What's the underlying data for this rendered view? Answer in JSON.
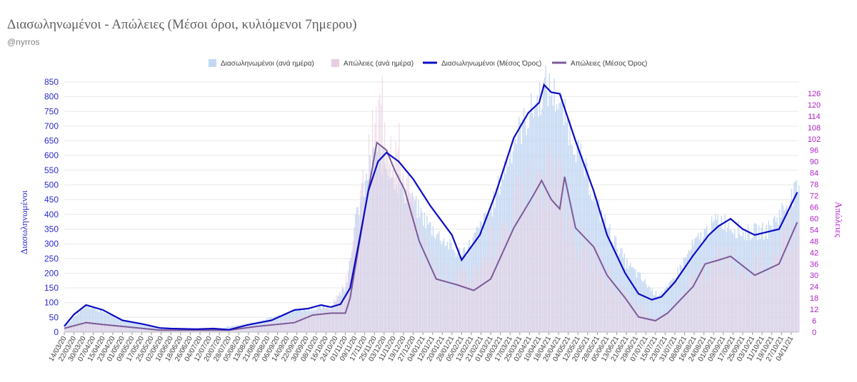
{
  "header": {
    "title": "Διασωληνωμένοι - Απώλειες (Μέσοι όροι, κυλιόμενοι 7ημερου)",
    "subtitle": "@nyrros"
  },
  "colors": {
    "intubated_daily": "#c5d8f3",
    "deaths_daily": "#e6cfe0",
    "intubated_avg": "#0c0cc4",
    "deaths_avg": "#7c5a98",
    "left_axis": "#2a2ad0",
    "right_axis": "#b020c8",
    "grid": "#e8e8e8"
  },
  "chart_data": {
    "type": "bar+line",
    "legend_position": "top",
    "grid": true,
    "ylabel": "Διασωληνωμένοι",
    "y2label": "Απώλειες",
    "ylim": [
      0,
      850
    ],
    "y2lim": [
      0,
      132
    ],
    "yticks": [
      0,
      50,
      100,
      150,
      200,
      250,
      300,
      350,
      400,
      450,
      500,
      550,
      600,
      650,
      700,
      750,
      800,
      850
    ],
    "y2ticks": [
      0,
      6,
      12,
      18,
      24,
      30,
      36,
      42,
      48,
      54,
      60,
      66,
      72,
      78,
      84,
      90,
      96,
      102,
      108,
      114,
      120,
      126
    ],
    "x_start": "2020-03-14",
    "x_end": "2021-11-10",
    "x_ticks": [
      "14/03/20",
      "22/03/20",
      "30/03/20",
      "07/04/20",
      "15/04/20",
      "23/04/20",
      "01/05/20",
      "09/05/20",
      "17/05/20",
      "25/05/20",
      "02/06/20",
      "10/06/20",
      "18/06/20",
      "26/06/20",
      "04/07/20",
      "12/07/20",
      "20/07/20",
      "28/07/20",
      "05/08/20",
      "13/08/20",
      "21/08/20",
      "29/08/20",
      "06/09/20",
      "14/09/20",
      "22/09/20",
      "30/09/20",
      "08/10/20",
      "16/10/20",
      "24/10/20",
      "01/11/20",
      "09/11/20",
      "17/11/20",
      "25/11/20",
      "03/12/20",
      "11/12/20",
      "19/12/20",
      "27/12/20",
      "04/01/21",
      "12/01/21",
      "20/01/21",
      "28/01/21",
      "05/02/21",
      "13/02/21",
      "21/02/21",
      "01/03/21",
      "09/03/21",
      "17/03/21",
      "25/03/21",
      "02/04/21",
      "10/04/21",
      "18/04/21",
      "26/04/21",
      "04/05/21",
      "12/05/21",
      "20/05/21",
      "28/05/21",
      "05/06/21",
      "13/06/21",
      "21/06/21",
      "29/06/21",
      "07/07/21",
      "15/07/21",
      "23/07/21",
      "31/07/21",
      "08/08/21",
      "16/08/21",
      "24/08/21",
      "01/09/21",
      "09/09/21",
      "17/09/21",
      "25/09/21",
      "03/10/21",
      "11/10/21",
      "19/10/21",
      "27/10/21",
      "04/11/21"
    ],
    "series": [
      {
        "name": "Διασωληνωμένοι (ανά ημέρα)",
        "type": "bar",
        "axis": "left",
        "x": [
          "2020-03-14",
          "2020-04-01",
          "2020-05-01",
          "2020-06-01",
          "2020-07-15",
          "2020-08-20",
          "2020-09-20",
          "2020-10-20",
          "2020-11-01",
          "2020-11-10",
          "2020-11-25",
          "2020-12-05",
          "2020-12-20",
          "2021-01-10",
          "2021-02-01",
          "2021-02-10",
          "2021-03-01",
          "2021-03-20",
          "2021-04-05",
          "2021-04-15",
          "2021-04-25",
          "2021-05-10",
          "2021-05-30",
          "2021-06-20",
          "2021-07-15",
          "2021-07-25",
          "2021-08-15",
          "2021-09-05",
          "2021-09-25",
          "2021-10-15",
          "2021-11-09"
        ],
        "y": [
          20,
          92,
          42,
          14,
          10,
          35,
          75,
          85,
          160,
          400,
          620,
          570,
          480,
          360,
          270,
          290,
          420,
          660,
          770,
          845,
          800,
          640,
          410,
          240,
          130,
          150,
          300,
          390,
          340,
          350,
          490
        ]
      },
      {
        "name": "Απώλειες (ανά ημέρα)",
        "type": "bar",
        "axis": "right",
        "x": [
          "2020-03-14",
          "2020-04-01",
          "2020-05-01",
          "2020-06-01",
          "2020-07-15",
          "2020-08-20",
          "2020-09-20",
          "2020-10-20",
          "2020-11-01",
          "2020-11-10",
          "2020-11-25",
          "2020-12-01",
          "2020-12-15",
          "2021-01-01",
          "2021-01-20",
          "2021-02-10",
          "2021-03-10",
          "2021-04-01",
          "2021-04-15",
          "2021-04-25",
          "2021-05-05",
          "2021-05-25",
          "2021-06-15",
          "2021-07-15",
          "2021-07-25",
          "2021-08-15",
          "2021-09-10",
          "2021-09-25",
          "2021-10-15",
          "2021-11-09"
        ],
        "y": [
          2,
          6,
          3,
          1,
          1,
          3,
          8,
          12,
          24,
          58,
          100,
          118,
          90,
          48,
          30,
          28,
          55,
          75,
          82,
          80,
          55,
          40,
          22,
          7,
          10,
          28,
          40,
          34,
          38,
          60
        ]
      },
      {
        "name": "Διασωληνωμένοι (Μέσος Όρος)",
        "type": "line",
        "axis": "left",
        "x": [
          "2020-03-14",
          "2020-03-22",
          "2020-04-01",
          "2020-04-15",
          "2020-05-01",
          "2020-05-17",
          "2020-06-01",
          "2020-06-10",
          "2020-07-01",
          "2020-07-15",
          "2020-07-28",
          "2020-08-13",
          "2020-09-01",
          "2020-09-20",
          "2020-10-01",
          "2020-10-12",
          "2020-10-20",
          "2020-10-28",
          "2020-11-05",
          "2020-11-12",
          "2020-11-20",
          "2020-11-28",
          "2020-12-05",
          "2020-12-15",
          "2020-12-27",
          "2021-01-10",
          "2021-01-28",
          "2021-02-05",
          "2021-02-20",
          "2021-03-05",
          "2021-03-20",
          "2021-04-01",
          "2021-04-10",
          "2021-04-14",
          "2021-04-20",
          "2021-04-27",
          "2021-05-10",
          "2021-05-25",
          "2021-06-05",
          "2021-06-20",
          "2021-07-01",
          "2021-07-12",
          "2021-07-20",
          "2021-07-31",
          "2021-08-15",
          "2021-08-28",
          "2021-09-05",
          "2021-09-15",
          "2021-09-25",
          "2021-10-05",
          "2021-10-15",
          "2021-10-25",
          "2021-11-09"
        ],
        "y": [
          20,
          60,
          92,
          75,
          40,
          28,
          14,
          12,
          10,
          12,
          8,
          25,
          40,
          75,
          80,
          92,
          85,
          95,
          150,
          300,
          480,
          580,
          610,
          580,
          520,
          430,
          330,
          245,
          330,
          470,
          660,
          745,
          780,
          840,
          815,
          810,
          650,
          480,
          330,
          200,
          130,
          110,
          120,
          170,
          260,
          330,
          360,
          385,
          350,
          330,
          340,
          350,
          475
        ]
      },
      {
        "name": "Απώλειες (Μέσος Όρος)",
        "type": "line",
        "axis": "right",
        "x": [
          "2020-03-14",
          "2020-04-01",
          "2020-04-15",
          "2020-05-01",
          "2020-06-01",
          "2020-07-01",
          "2020-07-28",
          "2020-08-20",
          "2020-09-20",
          "2020-10-05",
          "2020-10-20",
          "2020-11-01",
          "2020-11-05",
          "2020-11-12",
          "2020-11-20",
          "2020-11-27",
          "2020-12-05",
          "2020-12-12",
          "2020-12-20",
          "2021-01-01",
          "2021-01-15",
          "2021-02-01",
          "2021-02-15",
          "2021-03-01",
          "2021-03-20",
          "2021-04-05",
          "2021-04-12",
          "2021-04-20",
          "2021-04-27",
          "2021-05-01",
          "2021-05-10",
          "2021-05-25",
          "2021-06-05",
          "2021-06-20",
          "2021-07-01",
          "2021-07-15",
          "2021-07-25",
          "2021-08-15",
          "2021-08-25",
          "2021-09-05",
          "2021-09-15",
          "2021-09-25",
          "2021-10-05",
          "2021-10-15",
          "2021-10-25",
          "2021-11-09"
        ],
        "y": [
          2,
          5,
          4,
          3,
          1,
          1,
          1,
          3,
          5,
          9,
          10,
          10,
          18,
          45,
          75,
          100,
          96,
          85,
          75,
          48,
          28,
          25,
          22,
          28,
          55,
          72,
          80,
          70,
          65,
          82,
          55,
          45,
          30,
          18,
          8,
          6,
          10,
          24,
          36,
          38,
          40,
          35,
          30,
          33,
          36,
          58
        ]
      }
    ]
  }
}
